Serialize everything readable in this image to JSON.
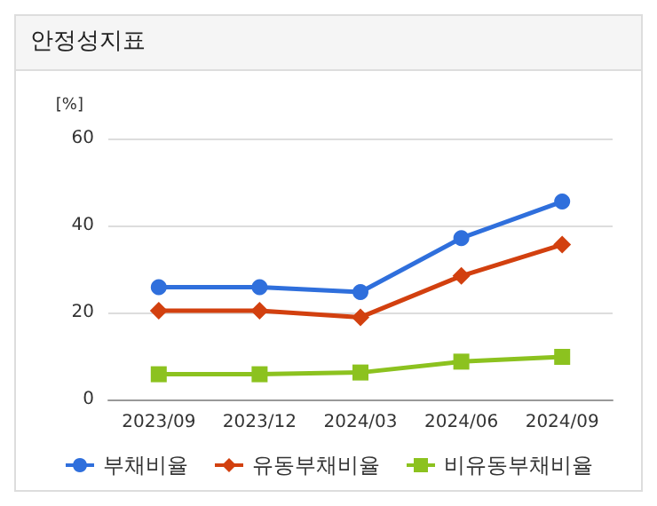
{
  "chart_data": {
    "type": "line",
    "title": "안정성지표",
    "ylabel": "[%]",
    "categories": [
      "2023/09",
      "2023/12",
      "2024/03",
      "2024/06",
      "2024/09"
    ],
    "series": [
      {
        "name": "부채비율",
        "color": "#2f6fdc",
        "marker": "circle",
        "values": [
          25.8,
          25.8,
          24.7,
          37.1,
          45.5
        ]
      },
      {
        "name": "유동부채비율",
        "color": "#d2400f",
        "marker": "diamond",
        "values": [
          20.4,
          20.4,
          18.9,
          28.4,
          35.6
        ]
      },
      {
        "name": "비유동부채비율",
        "color": "#8cc21f",
        "marker": "square",
        "values": [
          5.8,
          5.8,
          6.2,
          8.7,
          9.8
        ]
      }
    ],
    "ylim": [
      0,
      60
    ],
    "yticks": [
      0,
      20,
      40,
      60
    ],
    "grid": "y",
    "legend": "bottom",
    "line_style": "solid"
  }
}
